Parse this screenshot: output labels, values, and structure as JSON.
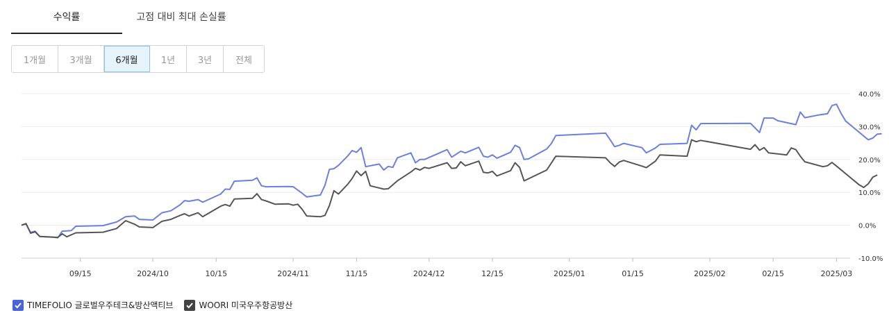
{
  "tabs": [
    {
      "label": "수익률",
      "active": true
    },
    {
      "label": "고점 대비 최대 손실률",
      "active": false
    }
  ],
  "periods": [
    {
      "label": "1개월",
      "active": false
    },
    {
      "label": "3개월",
      "active": false
    },
    {
      "label": "6개월",
      "active": true
    },
    {
      "label": "1년",
      "active": false
    },
    {
      "label": "3년",
      "active": false
    },
    {
      "label": "전체",
      "active": false
    }
  ],
  "chart_data": {
    "type": "line",
    "title": "",
    "xlabel": "",
    "ylabel": "",
    "ylim": [
      -10,
      40
    ],
    "y_ticks": [
      40,
      30,
      20,
      10,
      0,
      -10
    ],
    "y_tick_labels": [
      "40.0%",
      "30.0%",
      "20.0%",
      "10.0%",
      "0.0%",
      "-10.0%"
    ],
    "xlim": [
      "2024-09-02",
      "2025-03-04"
    ],
    "x_ticks": [
      "2024-09-15",
      "2024-10-01",
      "2024-10-15",
      "2024-11-01",
      "2024-11-15",
      "2024-12-01",
      "2024-12-15",
      "2025-01-01",
      "2025-01-15",
      "2025-02-01",
      "2025-02-15",
      "2025-03-01"
    ],
    "x_tick_labels": [
      "09/15",
      "2024/10",
      "10/15",
      "2024/11",
      "11/15",
      "2024/12",
      "12/15",
      "2025/01",
      "01/15",
      "2025/02",
      "02/15",
      "2025/03"
    ],
    "grid": true,
    "legend_position": "bottom-left",
    "series": [
      {
        "name": "TIMEFOLIO 글로벌우주테크&방산액티브",
        "color": "#6b7fe0",
        "points": [
          [
            "2024-09-02",
            0.0
          ],
          [
            "2024-09-03",
            0.4
          ],
          [
            "2024-09-04",
            -2.2
          ],
          [
            "2024-09-05",
            -1.8
          ],
          [
            "2024-09-06",
            -3.4
          ],
          [
            "2024-09-09",
            -3.6
          ],
          [
            "2024-09-10",
            -3.8
          ],
          [
            "2024-09-11",
            -1.8
          ],
          [
            "2024-09-12",
            -1.7
          ],
          [
            "2024-09-13",
            -1.6
          ],
          [
            "2024-09-14",
            -0.3
          ],
          [
            "2024-09-20",
            -0.1
          ],
          [
            "2024-09-23",
            1.0
          ],
          [
            "2024-09-25",
            2.6
          ],
          [
            "2024-09-27",
            2.8
          ],
          [
            "2024-09-28",
            1.8
          ],
          [
            "2024-10-01",
            1.6
          ],
          [
            "2024-10-03",
            3.8
          ],
          [
            "2024-10-05",
            4.4
          ],
          [
            "2024-10-07",
            6.2
          ],
          [
            "2024-10-08",
            7.5
          ],
          [
            "2024-10-09",
            7.3
          ],
          [
            "2024-10-11",
            7.8
          ],
          [
            "2024-10-12",
            7.0
          ],
          [
            "2024-10-16",
            9.5
          ],
          [
            "2024-10-17",
            11.0
          ],
          [
            "2024-10-18",
            10.9
          ],
          [
            "2024-10-19",
            13.4
          ],
          [
            "2024-10-23",
            13.7
          ],
          [
            "2024-10-24",
            14.4
          ],
          [
            "2024-10-25",
            12.0
          ],
          [
            "2024-10-26",
            11.7
          ],
          [
            "2024-10-31",
            11.8
          ],
          [
            "2024-11-01",
            11.7
          ],
          [
            "2024-11-03",
            9.7
          ],
          [
            "2024-11-04",
            8.6
          ],
          [
            "2024-11-07",
            9.2
          ],
          [
            "2024-11-08",
            12.1
          ],
          [
            "2024-11-09",
            17.0
          ],
          [
            "2024-11-10",
            17.2
          ],
          [
            "2024-11-11",
            18.2
          ],
          [
            "2024-11-13",
            21.0
          ],
          [
            "2024-11-14",
            22.7
          ],
          [
            "2024-11-15",
            22.2
          ],
          [
            "2024-11-16",
            23.6
          ],
          [
            "2024-11-17",
            17.8
          ],
          [
            "2024-11-20",
            18.6
          ],
          [
            "2024-11-21",
            16.8
          ],
          [
            "2024-11-22",
            17.9
          ],
          [
            "2024-11-23",
            17.6
          ],
          [
            "2024-11-24",
            20.5
          ],
          [
            "2024-11-27",
            22.0
          ],
          [
            "2024-11-28",
            19.0
          ],
          [
            "2024-11-29",
            20.0
          ],
          [
            "2024-11-30",
            20.0
          ],
          [
            "2024-12-05",
            23.0
          ],
          [
            "2024-12-06",
            20.7
          ],
          [
            "2024-12-08",
            22.5
          ],
          [
            "2024-12-09",
            22.0
          ],
          [
            "2024-12-12",
            23.7
          ],
          [
            "2024-12-13",
            21.0
          ],
          [
            "2024-12-14",
            20.7
          ],
          [
            "2024-12-15",
            21.4
          ],
          [
            "2024-12-16",
            20.4
          ],
          [
            "2024-12-19",
            22.2
          ],
          [
            "2024-12-20",
            24.3
          ],
          [
            "2024-12-21",
            23.6
          ],
          [
            "2024-12-22",
            20.0
          ],
          [
            "2024-12-23",
            20.2
          ],
          [
            "2024-12-27",
            23.2
          ],
          [
            "2024-12-28",
            24.8
          ],
          [
            "2024-12-29",
            27.3
          ],
          [
            "2025-01-09",
            28.0
          ],
          [
            "2025-01-10",
            26.0
          ],
          [
            "2025-01-11",
            23.9
          ],
          [
            "2025-01-12",
            24.3
          ],
          [
            "2025-01-13",
            24.9
          ],
          [
            "2025-01-17",
            23.6
          ],
          [
            "2025-01-18",
            22.0
          ],
          [
            "2025-01-20",
            23.5
          ],
          [
            "2025-01-21",
            24.6
          ],
          [
            "2025-01-27",
            24.9
          ],
          [
            "2025-01-28",
            30.4
          ],
          [
            "2025-01-29",
            29.0
          ],
          [
            "2025-01-30",
            30.9
          ],
          [
            "2025-02-10",
            31.0
          ],
          [
            "2025-02-12",
            28.2
          ],
          [
            "2025-02-13",
            32.6
          ],
          [
            "2025-02-15",
            32.6
          ],
          [
            "2025-02-16",
            31.8
          ],
          [
            "2025-02-20",
            30.6
          ],
          [
            "2025-02-21",
            34.4
          ],
          [
            "2025-02-22",
            32.7
          ],
          [
            "2025-02-25",
            33.5
          ],
          [
            "2025-02-27",
            33.9
          ],
          [
            "2025-02-28",
            36.4
          ],
          [
            "2025-03-01",
            36.8
          ],
          [
            "2025-03-02",
            34.0
          ],
          [
            "2025-03-03",
            31.7
          ],
          [
            "2025-03-08",
            26.0
          ],
          [
            "2025-03-09",
            26.5
          ],
          [
            "2025-03-10",
            27.7
          ],
          [
            "2025-03-11",
            27.8
          ]
        ]
      },
      {
        "name": "WOORI 미국우주항공방산",
        "color": "#555555",
        "points": [
          [
            "2024-09-02",
            0.0
          ],
          [
            "2024-09-03",
            0.5
          ],
          [
            "2024-09-04",
            -2.4
          ],
          [
            "2024-09-05",
            -2.0
          ],
          [
            "2024-09-06",
            -3.4
          ],
          [
            "2024-09-09",
            -3.6
          ],
          [
            "2024-09-10",
            -3.7
          ],
          [
            "2024-09-11",
            -2.6
          ],
          [
            "2024-09-12",
            -3.5
          ],
          [
            "2024-09-14",
            -2.3
          ],
          [
            "2024-09-20",
            -2.1
          ],
          [
            "2024-09-23",
            -1.0
          ],
          [
            "2024-09-25",
            1.4
          ],
          [
            "2024-09-27",
            0.3
          ],
          [
            "2024-09-28",
            -0.5
          ],
          [
            "2024-10-01",
            -0.7
          ],
          [
            "2024-10-03",
            1.2
          ],
          [
            "2024-10-05",
            1.8
          ],
          [
            "2024-10-07",
            3.0
          ],
          [
            "2024-10-08",
            3.5
          ],
          [
            "2024-10-09",
            2.8
          ],
          [
            "2024-10-11",
            3.8
          ],
          [
            "2024-10-12",
            2.6
          ],
          [
            "2024-10-16",
            5.8
          ],
          [
            "2024-10-17",
            6.3
          ],
          [
            "2024-10-18",
            5.8
          ],
          [
            "2024-10-19",
            8.0
          ],
          [
            "2024-10-23",
            8.2
          ],
          [
            "2024-10-24",
            9.6
          ],
          [
            "2024-10-25",
            7.8
          ],
          [
            "2024-10-26",
            7.4
          ],
          [
            "2024-10-28",
            6.4
          ],
          [
            "2024-10-31",
            6.5
          ],
          [
            "2024-11-01",
            6.1
          ],
          [
            "2024-11-02",
            6.4
          ],
          [
            "2024-11-03",
            4.8
          ],
          [
            "2024-11-04",
            2.8
          ],
          [
            "2024-11-07",
            2.6
          ],
          [
            "2024-11-08",
            3.0
          ],
          [
            "2024-11-09",
            6.0
          ],
          [
            "2024-11-10",
            10.5
          ],
          [
            "2024-11-11",
            9.5
          ],
          [
            "2024-11-13",
            12.4
          ],
          [
            "2024-11-14",
            14.2
          ],
          [
            "2024-11-15",
            16.5
          ],
          [
            "2024-11-16",
            15.1
          ],
          [
            "2024-11-17",
            16.4
          ],
          [
            "2024-11-18",
            12.0
          ],
          [
            "2024-11-21",
            11.0
          ],
          [
            "2024-11-22",
            11.1
          ],
          [
            "2024-11-24",
            13.5
          ],
          [
            "2024-11-27",
            16.2
          ],
          [
            "2024-11-28",
            17.3
          ],
          [
            "2024-11-29",
            16.8
          ],
          [
            "2024-11-30",
            17.6
          ],
          [
            "2024-12-01",
            17.3
          ],
          [
            "2024-12-05",
            19.0
          ],
          [
            "2024-12-06",
            17.3
          ],
          [
            "2024-12-07",
            17.4
          ],
          [
            "2024-12-08",
            19.3
          ],
          [
            "2024-12-09",
            18.1
          ],
          [
            "2024-12-12",
            19.5
          ],
          [
            "2024-12-13",
            16.1
          ],
          [
            "2024-12-14",
            15.9
          ],
          [
            "2024-12-15",
            16.4
          ],
          [
            "2024-12-16",
            15.0
          ],
          [
            "2024-12-19",
            16.6
          ],
          [
            "2024-12-20",
            19.0
          ],
          [
            "2024-12-21",
            17.6
          ],
          [
            "2024-12-22",
            13.5
          ],
          [
            "2024-12-27",
            16.8
          ],
          [
            "2024-12-29",
            21.0
          ],
          [
            "2025-01-09",
            20.5
          ],
          [
            "2025-01-10",
            19.0
          ],
          [
            "2025-01-11",
            17.9
          ],
          [
            "2025-01-12",
            19.2
          ],
          [
            "2025-01-13",
            19.7
          ],
          [
            "2025-01-17",
            18.0
          ],
          [
            "2025-01-18",
            17.5
          ],
          [
            "2025-01-20",
            19.5
          ],
          [
            "2025-01-21",
            21.4
          ],
          [
            "2025-01-27",
            21.0
          ],
          [
            "2025-01-28",
            26.0
          ],
          [
            "2025-01-29",
            25.4
          ],
          [
            "2025-01-30",
            25.8
          ],
          [
            "2025-02-10",
            23.1
          ],
          [
            "2025-02-11",
            24.5
          ],
          [
            "2025-02-12",
            22.8
          ],
          [
            "2025-02-13",
            23.6
          ],
          [
            "2025-02-14",
            22.0
          ],
          [
            "2025-02-18",
            21.4
          ],
          [
            "2025-02-19",
            23.5
          ],
          [
            "2025-02-20",
            23.0
          ],
          [
            "2025-02-21",
            21.0
          ],
          [
            "2025-02-22",
            19.3
          ],
          [
            "2025-02-26",
            17.8
          ],
          [
            "2025-02-27",
            18.1
          ],
          [
            "2025-02-28",
            19.1
          ],
          [
            "2025-03-01",
            18.0
          ],
          [
            "2025-03-06",
            12.3
          ],
          [
            "2025-03-07",
            11.5
          ],
          [
            "2025-03-08",
            12.6
          ],
          [
            "2025-03-09",
            14.6
          ],
          [
            "2025-03-10",
            15.3
          ]
        ]
      }
    ]
  },
  "legend": [
    {
      "label": "TIMEFOLIO 글로벌우주테크&방산액티브",
      "color": "#4a63d8",
      "checked": true
    },
    {
      "label": "WOORI 미국우주항공방산",
      "color": "#444444",
      "checked": true
    }
  ]
}
